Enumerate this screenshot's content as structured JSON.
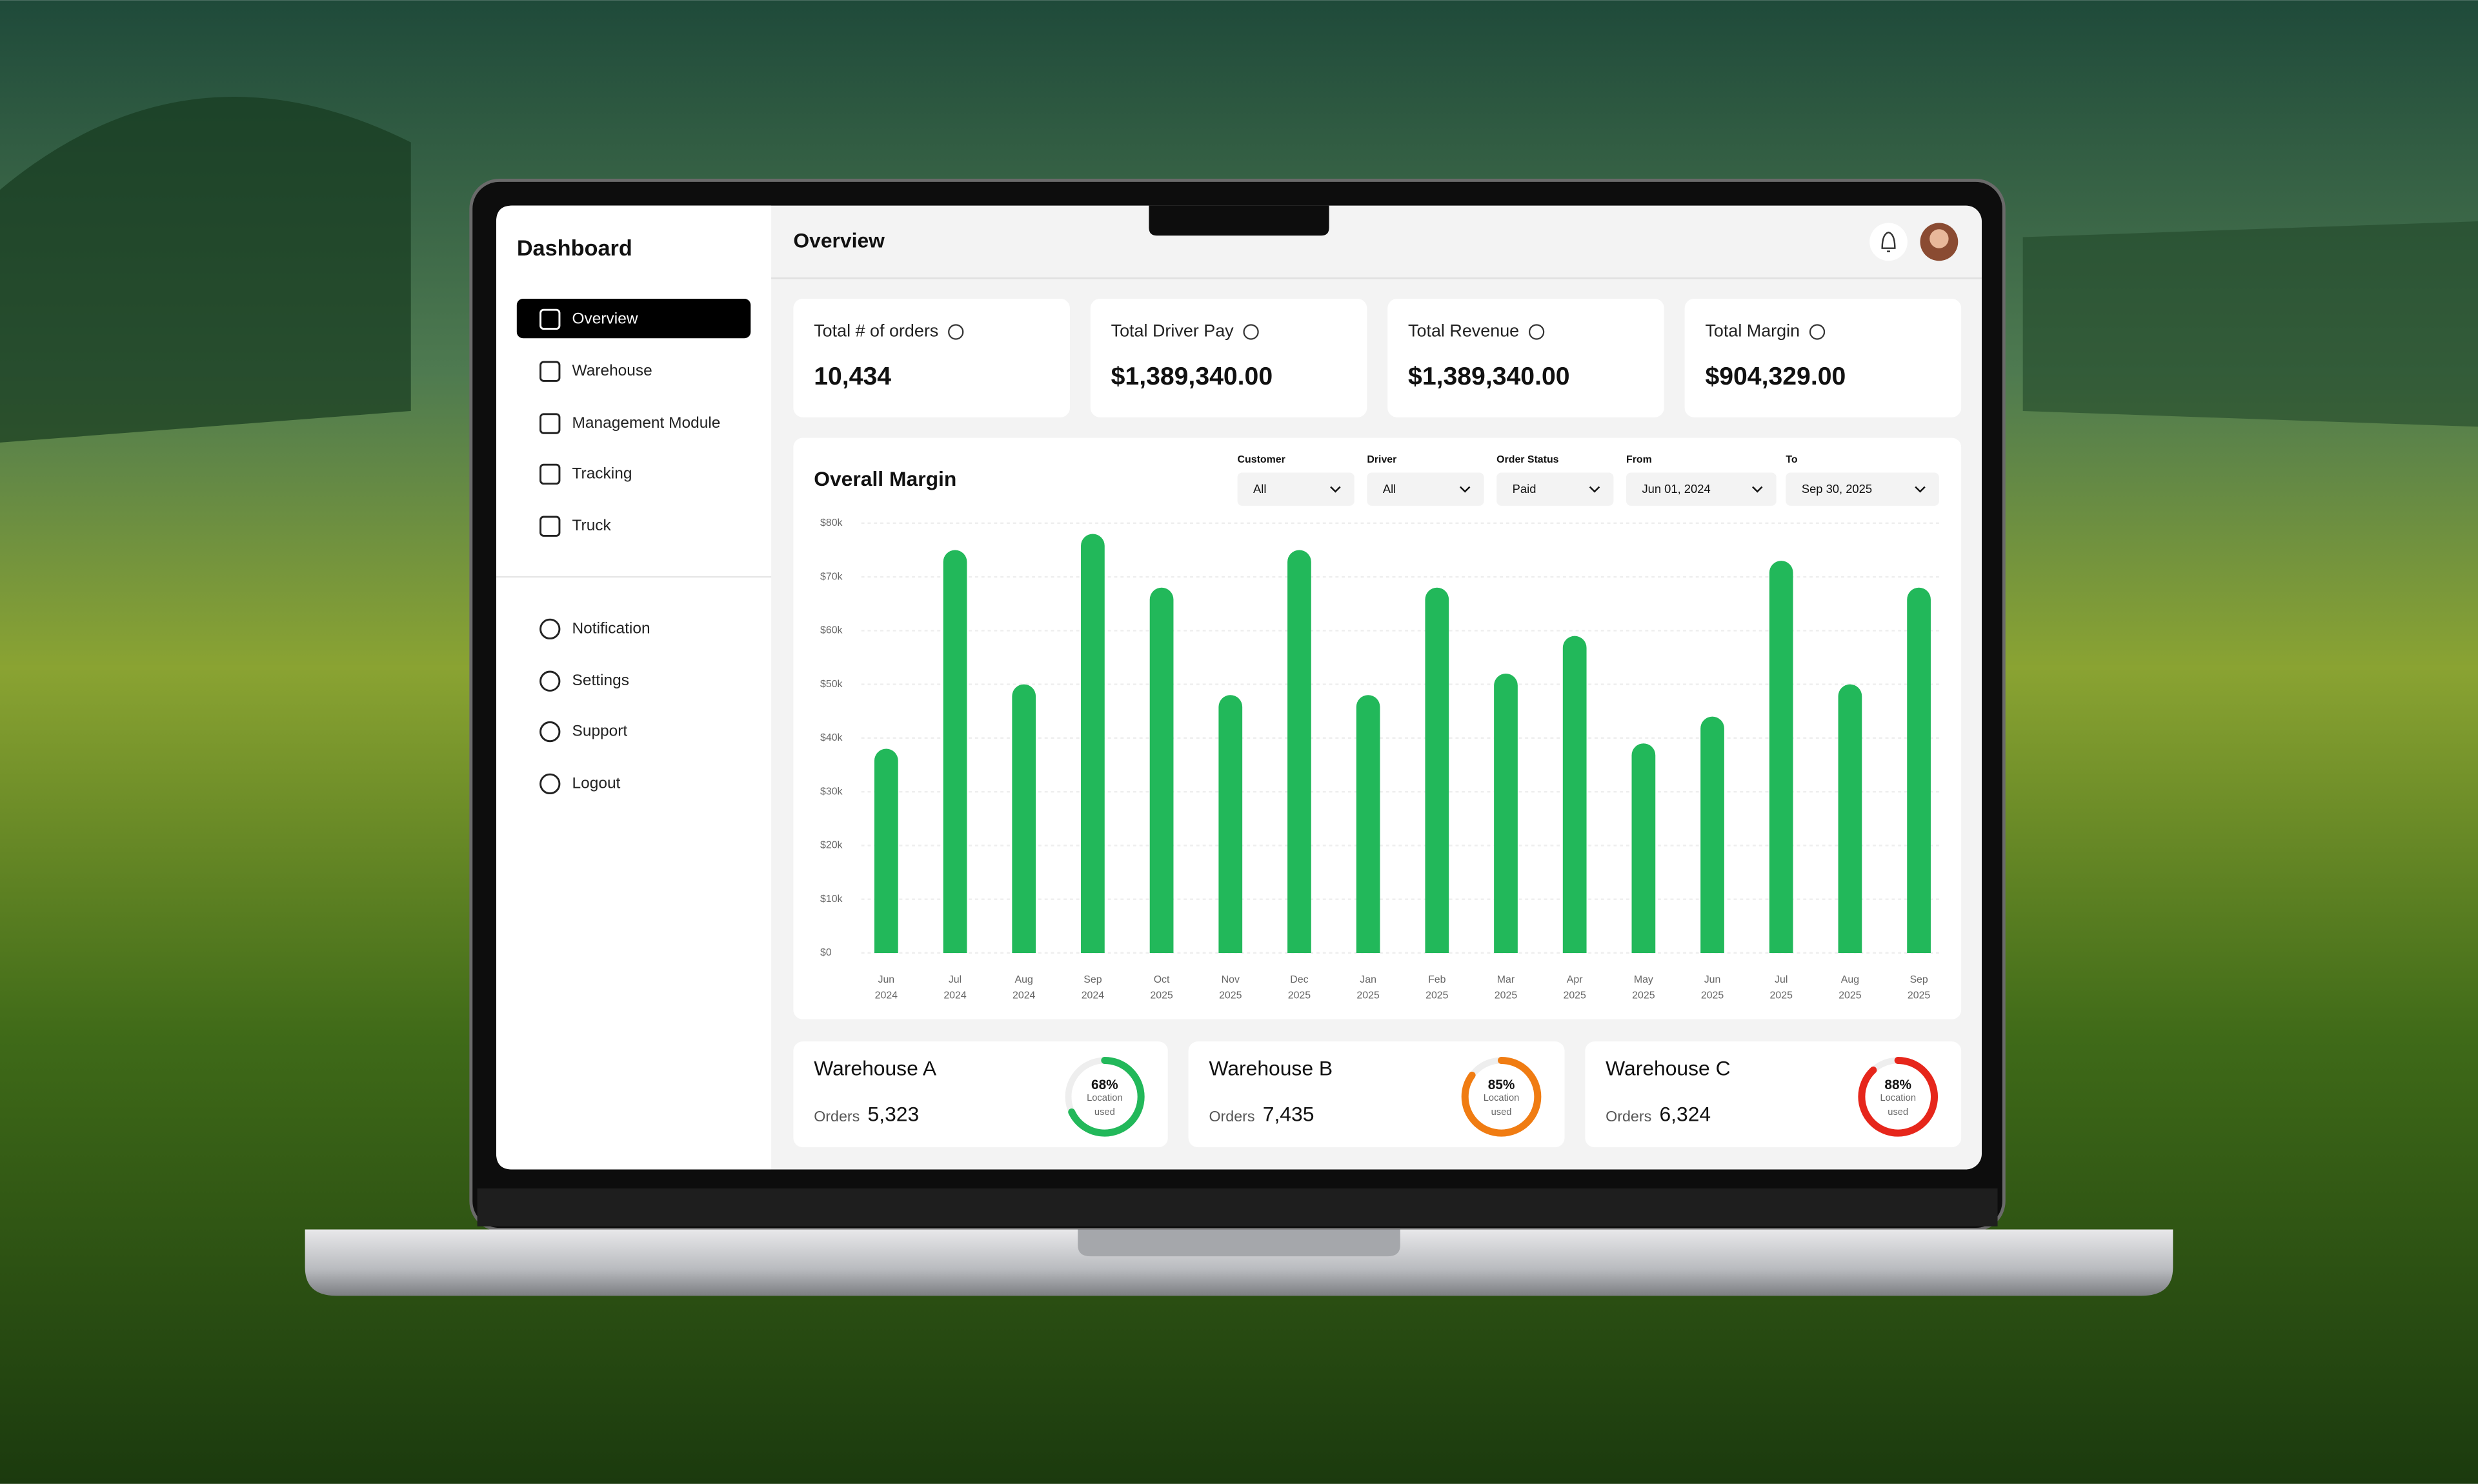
{
  "sidebar": {
    "title": "Dashboard",
    "menu": [
      "Overview",
      "Warehouse",
      "Management Module",
      "Tracking",
      "Truck"
    ],
    "secondary_menu": [
      "Notification",
      "Settings",
      "Support",
      "Logout"
    ]
  },
  "header": {
    "title": "Overview"
  },
  "cards": [
    {
      "label": "Total # of orders",
      "value": "10,434"
    },
    {
      "label": "Total Driver Pay",
      "value": "$1,389,340.00"
    },
    {
      "label": "Total Revenue",
      "value": "$1,389,340.00"
    },
    {
      "label": "Total Margin",
      "value": "$904,329.00"
    }
  ],
  "chart_data": {
    "type": "bar",
    "title": "Overall Margin",
    "color": "#22b85a",
    "filters": [
      {
        "label": "Customer",
        "value": "All"
      },
      {
        "label": "Driver",
        "value": "All"
      },
      {
        "label": "Order Status",
        "value": "Paid"
      },
      {
        "label": "From",
        "value": "Jun 01, 2024"
      },
      {
        "label": "To",
        "value": "Sep 30, 2025"
      }
    ],
    "categories": [
      [
        "Jun",
        "2024"
      ],
      [
        "Jul",
        "2024"
      ],
      [
        "Aug",
        "2024"
      ],
      [
        "Sep",
        "2024"
      ],
      [
        "Oct",
        "2025"
      ],
      [
        "Nov",
        "2025"
      ],
      [
        "Dec",
        "2025"
      ],
      [
        "Jan",
        "2025"
      ],
      [
        "Feb",
        "2025"
      ],
      [
        "Mar",
        "2025"
      ],
      [
        "Apr",
        "2025"
      ],
      [
        "May",
        "2025"
      ],
      [
        "Jun",
        "2025"
      ],
      [
        "Jul",
        "2025"
      ],
      [
        "Aug",
        "2025"
      ],
      [
        "Sep",
        "2025"
      ]
    ],
    "values": [
      38000,
      75000,
      50000,
      78000,
      68000,
      48000,
      75000,
      48000,
      68000,
      52000,
      59000,
      39000,
      44000,
      73000,
      50000,
      68000
    ],
    "ylim": [
      0,
      80000
    ],
    "yticks": [
      {
        "value": 0,
        "label": "$0"
      },
      {
        "value": 10000,
        "label": "$10k"
      },
      {
        "value": 20000,
        "label": "$20k"
      },
      {
        "value": 30000,
        "label": "$30k"
      },
      {
        "value": 40000,
        "label": "$40k"
      },
      {
        "value": 50000,
        "label": "$50k"
      },
      {
        "value": 60000,
        "label": "$60k"
      },
      {
        "value": 70000,
        "label": "$70k"
      },
      {
        "value": 80000,
        "label": "$80k"
      }
    ],
    "grid": true
  },
  "warehouses": [
    {
      "name": "Warehouse A",
      "orders_label": "Orders",
      "orders": "5,323",
      "usage": {
        "value": 68,
        "label": "68%"
      },
      "caption": [
        "Location",
        "used"
      ],
      "color": "#22b85a"
    },
    {
      "name": "Warehouse B",
      "orders_label": "Orders",
      "orders": "7,435",
      "usage": {
        "value": 85,
        "label": "85%"
      },
      "caption": [
        "Location",
        "used"
      ],
      "color": "#f07c12"
    },
    {
      "name": "Warehouse C",
      "orders_label": "Orders",
      "orders": "6,324",
      "usage": {
        "value": 88,
        "label": "88%"
      },
      "caption": [
        "Location",
        "used"
      ],
      "color": "#e6261b"
    }
  ]
}
